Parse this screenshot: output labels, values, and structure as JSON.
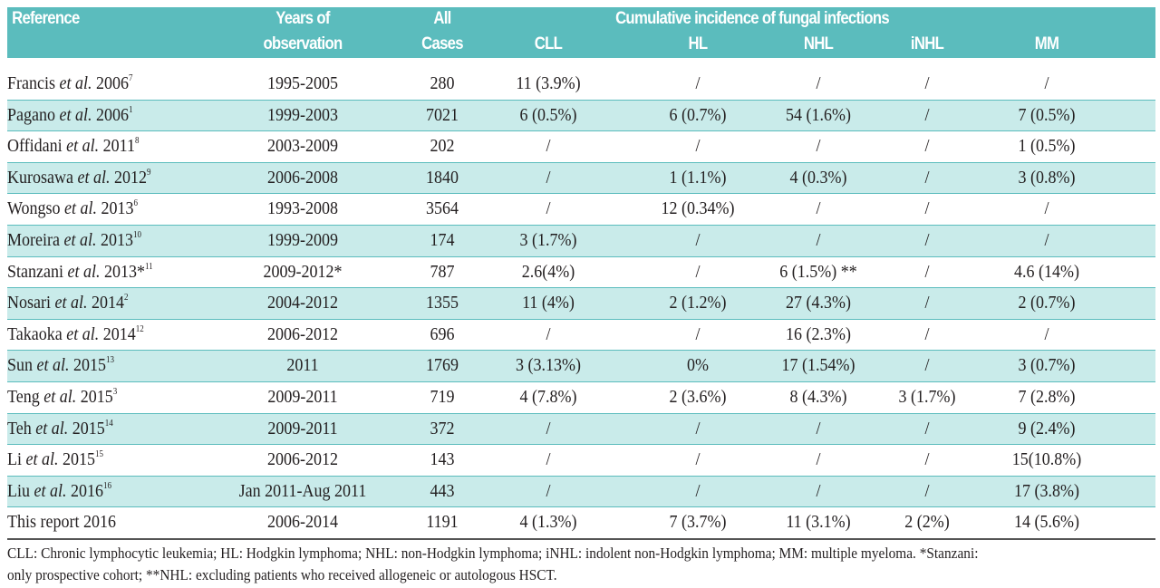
{
  "header": {
    "reference": "Reference",
    "years_line1": "Years of",
    "years_line2": "observation",
    "cases_line1": "All",
    "cases_line2": "Cases",
    "group": "Cumulative incidence of fungal infections",
    "cll": "CLL",
    "hl": "HL",
    "nhl": "NHL",
    "inhl": "iNHL",
    "mm": "MM"
  },
  "rows": [
    {
      "author": "Francis",
      "etal": "et al.",
      "year": "2006",
      "sup": "7",
      "years": "1995-2005",
      "cases": "280",
      "cll": "11 (3.9%)",
      "hl": "/",
      "nhl": "/",
      "inhl": "/",
      "mm": "/"
    },
    {
      "author": "Pagano",
      "etal": "et al.",
      "year": "2006",
      "sup": "1",
      "years": "1999-2003",
      "cases": "7021",
      "cll": "6 (0.5%)",
      "hl": "6 (0.7%)",
      "nhl": "54 (1.6%)",
      "inhl": "/",
      "mm": "7 (0.5%)"
    },
    {
      "author": "Offidani",
      "etal": "et al.",
      "year": "2011",
      "sup": "8",
      "years": "2003-2009",
      "cases": "202",
      "cll": "/",
      "hl": "/",
      "nhl": "/",
      "inhl": "/",
      "mm": "1 (0.5%)"
    },
    {
      "author": "Kurosawa",
      "etal": "et al.",
      "year": "2012",
      "sup": "9",
      "years": "2006-2008",
      "cases": "1840",
      "cll": "/",
      "hl": "1 (1.1%)",
      "nhl": "4 (0.3%)",
      "inhl": "/",
      "mm": "3 (0.8%)"
    },
    {
      "author": "Wongso",
      "etal": "et al.",
      "year": "2013",
      "sup": "6",
      "years": "1993-2008",
      "cases": "3564",
      "cll": "/",
      "hl": "12 (0.34%)",
      "nhl": "/",
      "inhl": "/",
      "mm": "/"
    },
    {
      "author": "Moreira",
      "etal": "et al.",
      "year": "2013",
      "sup": "10",
      "years": "1999-2009",
      "cases": "174",
      "cll": "3 (1.7%)",
      "hl": "/",
      "nhl": "/",
      "inhl": "/",
      "mm": "/"
    },
    {
      "author": "Stanzani",
      "etal": "et al.",
      "year": "2013*",
      "sup": "11",
      "years": "2009-2012*",
      "cases": "787",
      "cll": "2.6(4%)",
      "hl": "/",
      "nhl": "6 (1.5%) **",
      "inhl": "/",
      "mm": "4.6 (14%)"
    },
    {
      "author": "Nosari",
      "etal": "et al.",
      "year": "2014",
      "sup": "2",
      "years": "2004-2012",
      "cases": "1355",
      "cll": "11 (4%)",
      "hl": "2 (1.2%)",
      "nhl": "27 (4.3%)",
      "inhl": "/",
      "mm": "2 (0.7%)"
    },
    {
      "author": "Takaoka",
      "etal": "et al.",
      "year": "2014",
      "sup": "12",
      "years": "2006-2012",
      "cases": "696",
      "cll": "/",
      "hl": "/",
      "nhl": "16 (2.3%)",
      "inhl": "/",
      "mm": "/"
    },
    {
      "author": "Sun",
      "etal": "et al.",
      "year": "2015",
      "sup": "13",
      "years": "2011",
      "cases": "1769",
      "cll": "3 (3.13%)",
      "hl": "0%",
      "nhl": "17 (1.54%)",
      "inhl": "/",
      "mm": "3 (0.7%)"
    },
    {
      "author": "Teng",
      "etal": "et al.",
      "year": "2015",
      "sup": "3",
      "years": "2009-2011",
      "cases": "719",
      "cll": "4 (7.8%)",
      "hl": "2 (3.6%)",
      "nhl": "8 (4.3%)",
      "inhl": "3 (1.7%)",
      "mm": "7 (2.8%)"
    },
    {
      "author": "Teh",
      "etal": "et al.",
      "year": "2015",
      "sup": "14",
      "years": "2009-2011",
      "cases": "372",
      "cll": "/",
      "hl": "/",
      "nhl": "/",
      "inhl": "/",
      "mm": "9 (2.4%)"
    },
    {
      "author": "Li",
      "etal": "et al.",
      "year": "2015",
      "sup": "15",
      "years": "2006-2012",
      "cases": "143",
      "cll": "/",
      "hl": "/",
      "nhl": "/",
      "inhl": "/",
      "mm": "15(10.8%)"
    },
    {
      "author": "Liu",
      "etal": "et al.",
      "year": "2016",
      "sup": "16",
      "years": "Jan 2011-Aug 2011",
      "cases": "443",
      "cll": "/",
      "hl": "/",
      "nhl": "/",
      "inhl": "/",
      "mm": "17 (3.8%)"
    },
    {
      "author": "This report",
      "etal": "",
      "year": "2016",
      "sup": "",
      "years": "2006-2014",
      "cases": "1191",
      "cll": "4 (1.3%)",
      "hl": "7 (3.7%)",
      "nhl": "11 (3.1%)",
      "inhl": "2 (2%)",
      "mm": "14 (5.6%)"
    }
  ],
  "footnote": {
    "line1": "CLL:  Chronic lymphocytic leukemia; HL: Hodgkin lymphoma; NHL: non-Hodgkin lymphoma;  iNHL: indolent non-Hodgkin lymphoma; MM: multiple myeloma. *Stanzani:",
    "line2": "only prospective cohort; **NHL: excluding patients who received allogeneic or autologous HSCT."
  },
  "colors": {
    "header": "#5bbcbd",
    "stripe": "#c9ebea"
  }
}
